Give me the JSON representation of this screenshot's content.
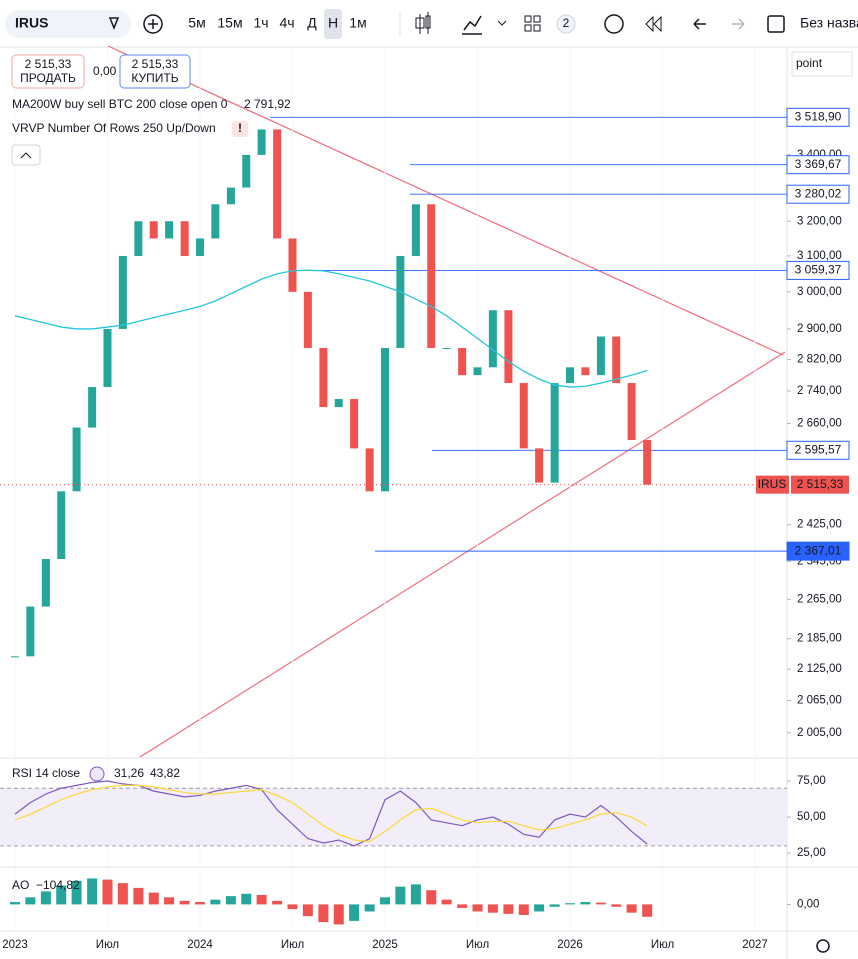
{
  "toolbar": {
    "symbol": "IRUS",
    "intervals": [
      "5м",
      "15м",
      "1ч",
      "4ч",
      "Д",
      "Н",
      "1м"
    ],
    "layouts_count": "2",
    "layout_name": "Без назва"
  },
  "trade": {
    "sell_price": "2 515,33",
    "sell_label": "ПРОДАТЬ",
    "spread": "0,00",
    "buy_price": "2 515,33",
    "buy_label": "КУПИТЬ"
  },
  "point_label": "point",
  "vrvp_title": "VRVP Number Of Rows 250 Up/Down",
  "chart_data": [
    {
      "type": "candlestick",
      "x": [
        2023,
        2023.083,
        2023.167,
        2023.25,
        2023.333,
        2023.417,
        2023.5,
        2023.583,
        2023.667,
        2023.75,
        2023.833,
        2023.917,
        2024,
        2024.083,
        2024.167,
        2024.25,
        2024.333,
        2024.417,
        2024.5,
        2024.583,
        2024.667,
        2024.75,
        2024.833,
        2024.917,
        2025,
        2025.083,
        2025.167,
        2025.25,
        2025.333,
        2025.417,
        2025.5,
        2025.583,
        2025.667,
        2025.75,
        2025.833,
        2025.917,
        2026,
        2026.083,
        2026.167,
        2026.25,
        2026.333,
        2026.417
      ],
      "series": [
        {
          "name": "IRUS",
          "up_color": "#26a69a",
          "down_color": "#ef5350",
          "last_label": "2 515,33",
          "values": [
            2150,
            2250,
            2350,
            2500,
            2650,
            2750,
            2900,
            3100,
            3200,
            3150,
            3200,
            3100,
            3150,
            3250,
            3300,
            3400,
            3480,
            3150,
            3000,
            2850,
            2700,
            2720,
            2600,
            2500,
            2850,
            3100,
            3250,
            2850,
            2850,
            2780,
            2800,
            2950,
            2760,
            2600,
            2520,
            2760,
            2800,
            2780,
            2880,
            2760,
            2620,
            2515.33
          ]
        },
        {
          "name": "MA200W buy sell BTC 200 close open 0",
          "color": "#26c6da",
          "last_label": "2 791,92",
          "values": [
            2935,
            2925,
            2915,
            2905,
            2900,
            2900,
            2905,
            2910,
            2920,
            2930,
            2940,
            2950,
            2960,
            2975,
            2995,
            3015,
            3035,
            3050,
            3058,
            3060,
            3058,
            3050,
            3040,
            3030,
            3015,
            3000,
            2980,
            2960,
            2935,
            2905,
            2875,
            2845,
            2815,
            2790,
            2770,
            2755,
            2750,
            2752,
            2760,
            2770,
            2780,
            2791.92
          ]
        }
      ],
      "levels": [
        {
          "value": 3518.9,
          "label": "3 518,90"
        },
        {
          "value": 3369.67,
          "label": "3 369,67"
        },
        {
          "value": 3280.02,
          "label": "3 280,02"
        },
        {
          "value": 3059.37,
          "label": "3 059,37"
        },
        {
          "value": 2595.57,
          "label": "2 595,57"
        },
        {
          "value": 2367.01,
          "label": "2 367,01"
        }
      ],
      "xlim": [
        2022.919,
        2027.162
      ],
      "xticks": [
        2023,
        {
          "value": 2023.5,
          "label": "Июл"
        },
        2024,
        {
          "value": 2024.5,
          "label": "Июл"
        },
        2025,
        {
          "value": 2025.5,
          "label": "Июл"
        },
        2026,
        {
          "value": 2026.5,
          "label": "Июл"
        },
        2027
      ],
      "ylim": [
        1961,
        3749
      ],
      "log": true,
      "yticks": [
        {
          "value": 3400,
          "label": "3 400,00"
        },
        {
          "value": 3200,
          "label": "3 200,00"
        },
        {
          "value": 3100,
          "label": "3 100,00"
        },
        {
          "value": 3000,
          "label": "3 000,00"
        },
        {
          "value": 2900,
          "label": "2 900,00"
        },
        {
          "value": 2820,
          "label": "2 820,00"
        },
        {
          "value": 2740,
          "label": "2 740,00"
        },
        {
          "value": 2660,
          "label": "2 660,00"
        },
        {
          "value": 2425,
          "label": "2 425,00"
        },
        {
          "value": 2345,
          "label": "2 345,00"
        },
        {
          "value": 2265,
          "label": "2 265,00"
        },
        {
          "value": 2185,
          "label": "2 185,00"
        },
        {
          "value": 2125,
          "label": "2 125,00"
        },
        {
          "value": 2065,
          "label": "2 065,00"
        },
        {
          "value": 2005,
          "label": "2 005,00"
        }
      ]
    },
    {
      "type": "line",
      "title": "RSI 14 close",
      "series": [
        {
          "color": "#7e57c2",
          "last_label": "31,26",
          "values": [
            52,
            60,
            66,
            70,
            72,
            74,
            75,
            73,
            72,
            68,
            66,
            64,
            65,
            68,
            70,
            72,
            69,
            55,
            45,
            35,
            32,
            34,
            30,
            35,
            62,
            68,
            60,
            48,
            46,
            44,
            48,
            50,
            45,
            38,
            36,
            48,
            52,
            50,
            58,
            50,
            40,
            31.26
          ]
        },
        {
          "color": "#fdd835",
          "last_label": "43,82",
          "values": [
            48,
            52,
            57,
            62,
            66,
            69,
            71,
            72,
            72,
            71,
            69,
            67,
            66,
            66,
            67,
            68,
            69,
            65,
            60,
            52,
            44,
            38,
            34,
            33,
            40,
            48,
            55,
            56,
            52,
            48,
            46,
            47,
            47,
            44,
            41,
            42,
            45,
            48,
            52,
            53,
            50,
            43.82
          ]
        }
      ],
      "band": [
        30,
        70
      ],
      "ylim": [
        16,
        89.6
      ],
      "yticks": [
        {
          "value": 75,
          "label": "75,00"
        },
        {
          "value": 50,
          "label": "50,00"
        },
        {
          "value": 25,
          "label": "25,00"
        }
      ]
    },
    {
      "type": "bar",
      "title": "AO",
      "last_label": "−104,82",
      "up_color": "#26a69a",
      "down_color": "#ef5350",
      "values": [
        20,
        60,
        110,
        160,
        200,
        220,
        210,
        180,
        140,
        100,
        60,
        30,
        20,
        40,
        70,
        90,
        80,
        30,
        -40,
        -100,
        -150,
        -170,
        -140,
        -60,
        60,
        150,
        170,
        120,
        40,
        -30,
        -60,
        -70,
        -80,
        -90,
        -60,
        -20,
        10,
        20,
        15,
        -20,
        -70,
        -104.82
      ],
      "ylim": [
        -217,
        300
      ],
      "yticks": [
        {
          "value": 0,
          "label": "0,00"
        }
      ]
    }
  ]
}
